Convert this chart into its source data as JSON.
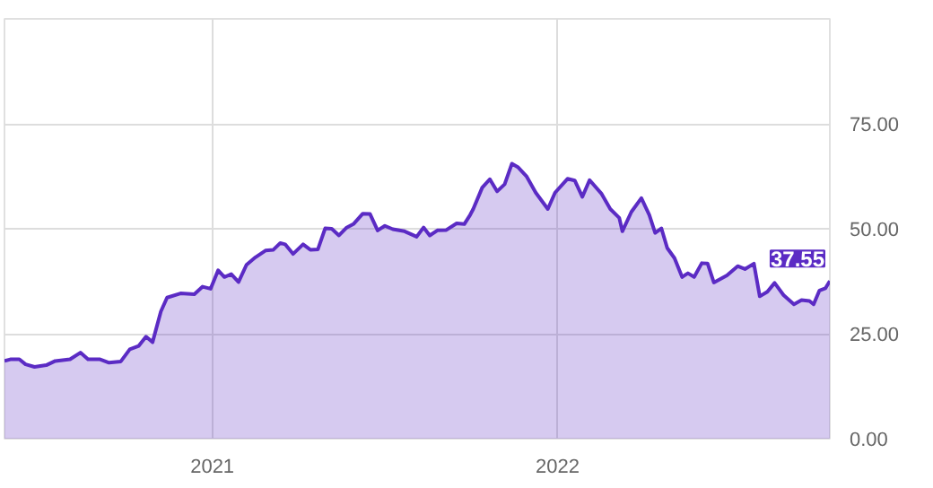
{
  "chart_data": {
    "type": "area",
    "x": [
      2020.398,
      2020.415,
      2020.441,
      2020.459,
      2020.485,
      2020.519,
      2020.545,
      2020.588,
      2020.618,
      2020.64,
      2020.675,
      2020.701,
      2020.735,
      2020.761,
      2020.787,
      2020.808,
      2020.827,
      2020.851,
      2020.869,
      2020.908,
      2020.948,
      2020.972,
      2020.995,
      2021.017,
      2021.035,
      2021.055,
      2021.076,
      2021.099,
      2021.125,
      2021.154,
      2021.177,
      2021.197,
      2021.211,
      2021.234,
      2021.263,
      2021.284,
      2021.306,
      2021.327,
      2021.346,
      2021.367,
      2021.388,
      2021.41,
      2021.436,
      2021.457,
      2021.479,
      2021.5,
      2021.523,
      2021.557,
      2021.592,
      2021.612,
      2021.63,
      2021.652,
      2021.678,
      2021.708,
      2021.73,
      2021.747,
      2021.756,
      2021.782,
      2021.804,
      2021.825,
      2021.847,
      2021.868,
      2021.885,
      2021.911,
      2021.937,
      2021.972,
      2021.993,
      2022.029,
      2022.05,
      2022.072,
      2022.093,
      2022.128,
      2022.153,
      2022.179,
      2022.188,
      2022.214,
      2022.243,
      2022.266,
      2022.283,
      2022.301,
      2022.318,
      2022.339,
      2022.361,
      2022.378,
      2022.396,
      2022.418,
      2022.435,
      2022.453,
      2022.491,
      2022.522,
      2022.543,
      2022.569,
      2022.586,
      2022.608,
      2022.629,
      2022.655,
      2022.685,
      2022.707,
      2022.73,
      2022.742,
      2022.759,
      2022.776,
      2022.789
    ],
    "series": [
      {
        "color": "#5b2bc4",
        "values": [
          18.5,
          18.9,
          18.9,
          17.7,
          17.1,
          17.5,
          18.5,
          18.9,
          20.5,
          18.9,
          18.9,
          18.1,
          18.4,
          21.3,
          22.1,
          24.3,
          23,
          30.3,
          33.6,
          34.6,
          34.4,
          36.2,
          35.7,
          40.1,
          38.5,
          39.2,
          37.3,
          41.4,
          43.2,
          44.8,
          45,
          46.6,
          46.3,
          44,
          46.3,
          45,
          45.1,
          50.1,
          50,
          48.4,
          50.2,
          51.2,
          53.6,
          53.5,
          49.6,
          50.7,
          49.9,
          49.4,
          48.1,
          50.3,
          48.4,
          49.6,
          49.7,
          51.3,
          51.1,
          53.3,
          54.7,
          59.8,
          61.8,
          58.9,
          60.6,
          65.5,
          64.7,
          62.4,
          58.6,
          54.7,
          58.6,
          61.9,
          61.5,
          57.6,
          61.6,
          58.3,
          54.7,
          52.6,
          49.4,
          54,
          57.3,
          53.3,
          49,
          50.1,
          45.4,
          43,
          38.5,
          39.4,
          38.5,
          41.8,
          41.7,
          37.2,
          38.9,
          41.1,
          40.4,
          41.7,
          33.9,
          35,
          37.1,
          34.2,
          32,
          33,
          32.8,
          32,
          35.3,
          35.8,
          37.55
        ]
      }
    ],
    "xlim": [
      2020.398,
      2022.789
    ],
    "xticks": [
      2021,
      2022
    ],
    "ylim": [
      0,
      100
    ],
    "yticks": [
      {
        "value": 0,
        "label": "0.00"
      },
      {
        "value": 25,
        "label": "25.00"
      },
      {
        "value": 50,
        "label": "50.00"
      },
      {
        "value": 75,
        "label": "75.00"
      }
    ],
    "grid": true,
    "annotations": [
      {
        "text": "37.55",
        "x": 2022.789,
        "y": 37.55
      }
    ]
  }
}
